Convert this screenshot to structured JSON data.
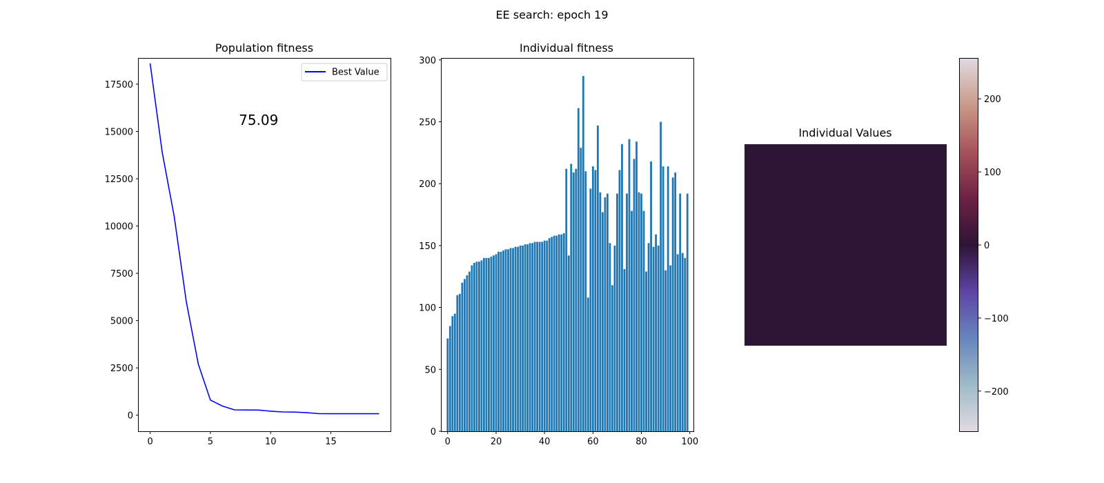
{
  "figure": {
    "suptitle": "EE search: epoch 19"
  },
  "chart_data": [
    {
      "type": "line",
      "title": "Population fitness",
      "xlabel": "",
      "ylabel": "",
      "x_ticks": [
        0,
        5,
        10,
        15
      ],
      "y_ticks": [
        0,
        2500,
        5000,
        7500,
        10000,
        12500,
        15000,
        17500
      ],
      "xlim": [
        -0.95,
        19.95
      ],
      "ylim": [
        -850,
        18850
      ],
      "grid": false,
      "legend": {
        "placement": "top-right",
        "entries": [
          "Best Value"
        ]
      },
      "annotation": {
        "text": "75.09",
        "x": 9,
        "y": 15600,
        "color": "#0000ff"
      },
      "series": [
        {
          "name": "Best Value",
          "color": "#0000ff",
          "x": [
            0,
            1,
            2,
            3,
            4,
            5,
            6,
            7,
            8,
            9,
            10,
            11,
            12,
            13,
            14,
            15,
            16,
            17,
            18,
            19
          ],
          "y": [
            18600,
            13900,
            10500,
            6000,
            2700,
            800,
            480,
            280,
            275,
            270,
            210,
            170,
            165,
            130,
            80,
            78,
            77,
            76,
            75.5,
            75.09
          ]
        }
      ]
    },
    {
      "type": "bar",
      "title": "Individual fitness",
      "xlabel": "",
      "ylabel": "",
      "x_ticks": [
        0,
        20,
        40,
        60,
        80,
        100
      ],
      "y_ticks": [
        0,
        50,
        100,
        150,
        200,
        250,
        300
      ],
      "xlim": [
        -2.5,
        101.5
      ],
      "ylim": [
        0,
        301
      ],
      "grid": false,
      "color": "#1f77b4",
      "categories": [
        0,
        1,
        2,
        3,
        4,
        5,
        6,
        7,
        8,
        9,
        10,
        11,
        12,
        13,
        14,
        15,
        16,
        17,
        18,
        19,
        20,
        21,
        22,
        23,
        24,
        25,
        26,
        27,
        28,
        29,
        30,
        31,
        32,
        33,
        34,
        35,
        36,
        37,
        38,
        39,
        40,
        41,
        42,
        43,
        44,
        45,
        46,
        47,
        48,
        49,
        50,
        51,
        52,
        53,
        54,
        55,
        56,
        57,
        58,
        59,
        60,
        61,
        62,
        63,
        64,
        65,
        66,
        67,
        68,
        69,
        70,
        71,
        72,
        73,
        74,
        75,
        76,
        77,
        78,
        79,
        80,
        81,
        82,
        83,
        84,
        85,
        86,
        87,
        88,
        89,
        90,
        91,
        92,
        93,
        94,
        95,
        96,
        97,
        98,
        99
      ],
      "values": [
        75,
        85,
        93,
        95,
        110,
        111,
        120,
        123,
        126,
        129,
        134,
        136,
        137,
        137,
        138,
        140,
        140,
        140,
        141,
        142,
        143,
        145,
        145,
        146,
        147,
        147,
        148,
        148,
        149,
        149,
        150,
        150,
        151,
        151,
        152,
        152,
        153,
        153,
        153,
        153,
        154,
        154,
        156,
        157,
        158,
        158,
        159,
        159,
        160,
        212,
        142,
        216,
        209,
        212,
        261,
        229,
        287,
        210,
        108,
        196,
        214,
        211,
        247,
        193,
        177,
        189,
        192,
        152,
        118,
        150,
        192,
        211,
        232,
        131,
        192,
        236,
        178,
        220,
        234,
        193,
        192,
        178,
        129,
        152,
        218,
        149,
        159,
        150,
        250,
        214,
        130,
        214,
        134,
        205,
        209,
        143,
        192,
        144,
        140,
        192
      ]
    },
    {
      "type": "heatmap",
      "title": "Individual Values",
      "xlabel": "",
      "ylabel": "",
      "colormap": "twilight",
      "vmin": -255,
      "vmax": 255,
      "cell_value_approx": 10,
      "colorbar_ticks": [
        -200,
        -100,
        0,
        100,
        200
      ],
      "colorbar_tick_labels": [
        "−200",
        "−100",
        "0",
        "100",
        "200"
      ]
    }
  ]
}
